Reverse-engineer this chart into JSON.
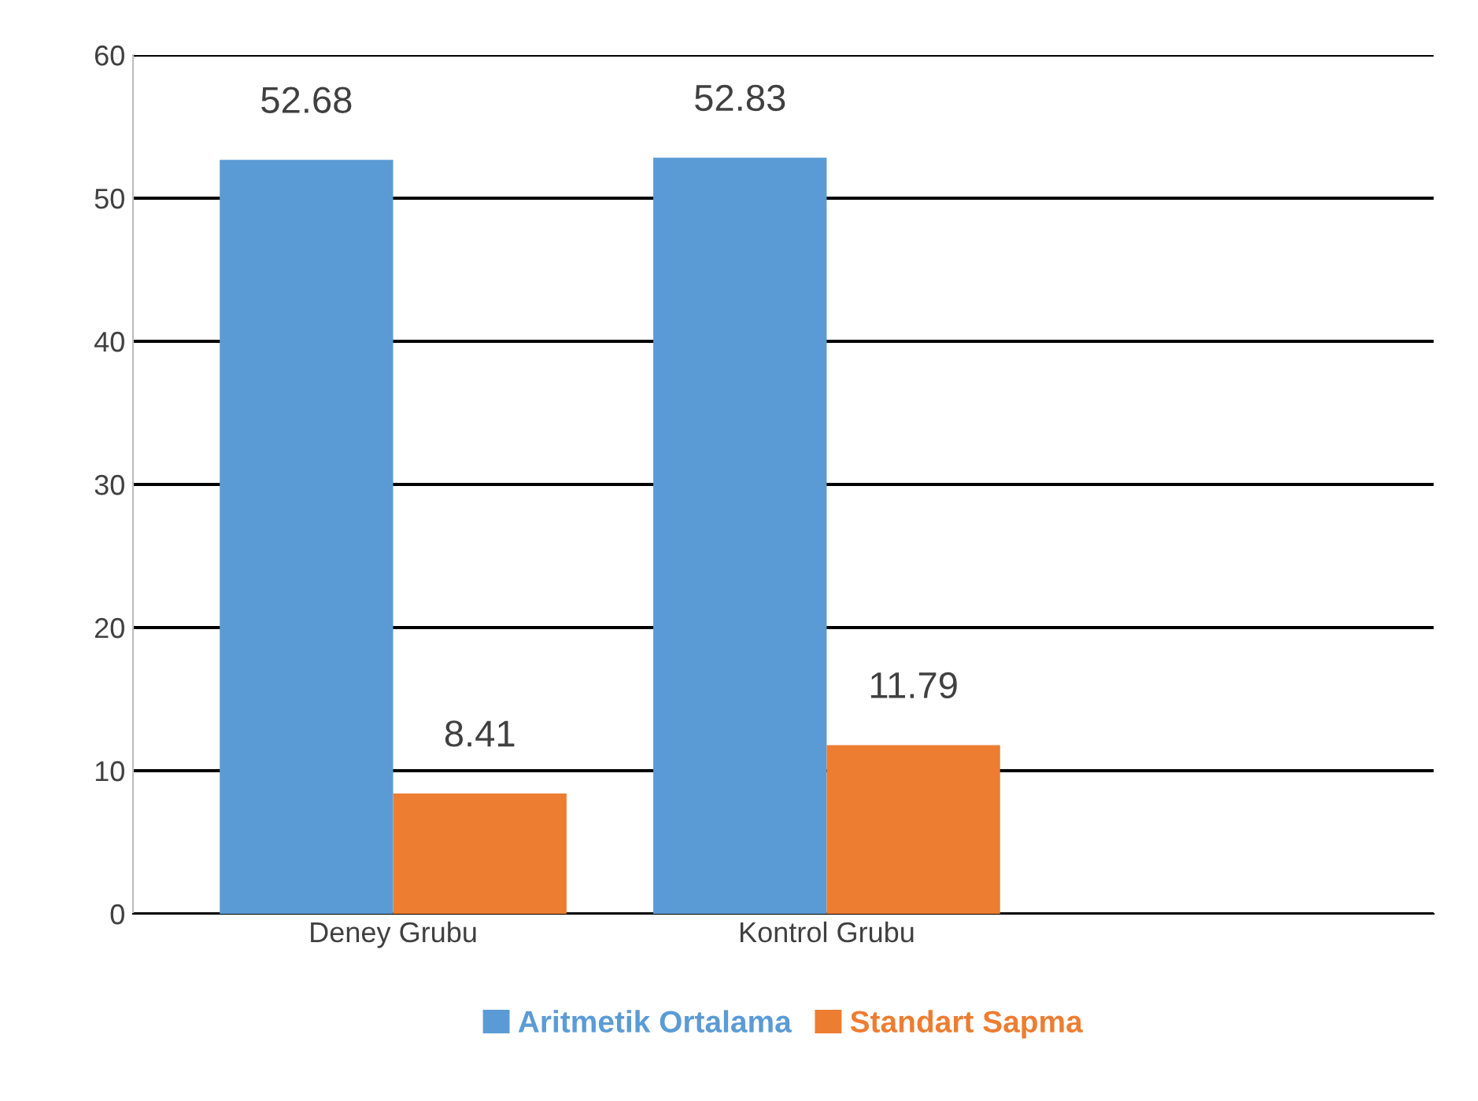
{
  "chart_data": {
    "type": "bar",
    "categories": [
      "Deney Grubu",
      "Kontrol Grubu"
    ],
    "series": [
      {
        "name": "Aritmetik Ortalama",
        "color": "#5b9bd5",
        "values": [
          52.68,
          52.83
        ]
      },
      {
        "name": "Standart Sapma",
        "color": "#ed7d31",
        "values": [
          8.41,
          11.79
        ]
      }
    ],
    "ylim": [
      0,
      60
    ],
    "yticks": [
      0,
      10,
      20,
      30,
      40,
      50,
      60
    ],
    "grid": "y",
    "legend": "bottom",
    "data_labels": true
  }
}
